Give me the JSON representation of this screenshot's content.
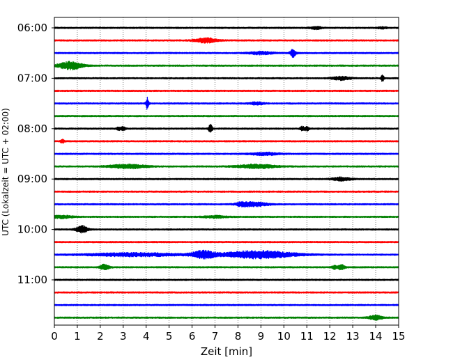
{
  "chart_data": {
    "type": "line",
    "title": "",
    "xlabel": "Zeit  [min]",
    "ylabel": "UTC (Lokalzeit = UTC + 02:00)",
    "xlim": [
      0,
      15
    ],
    "x_ticks": [
      0,
      1,
      2,
      3,
      4,
      5,
      6,
      7,
      8,
      9,
      10,
      11,
      12,
      13,
      14,
      15
    ],
    "y_tick_labels": [
      "06:00",
      "07:00",
      "08:00",
      "09:00",
      "10:00",
      "11:00"
    ],
    "grid": "vertical dotted",
    "colors": [
      "#000000",
      "#ff0000",
      "#0000ff",
      "#008000"
    ],
    "trace_interval_min": 15,
    "traces": [
      {
        "start": "06:00",
        "color": "#000000",
        "events": [
          {
            "t": 11.4,
            "amp": 0.18,
            "w": 0.25
          },
          {
            "t": 14.3,
            "amp": 0.12,
            "w": 0.2
          }
        ]
      },
      {
        "start": "06:15",
        "color": "#ff0000",
        "events": [
          {
            "t": 6.6,
            "amp": 0.35,
            "w": 0.5
          }
        ]
      },
      {
        "start": "06:30",
        "color": "#0000ff",
        "events": [
          {
            "t": 10.4,
            "amp": 0.6,
            "w": 0.12
          },
          {
            "t": 9.0,
            "amp": 0.2,
            "w": 0.5
          }
        ]
      },
      {
        "start": "06:45",
        "color": "#008000",
        "events": [
          {
            "t": 0.7,
            "amp": 0.6,
            "w": 0.5
          }
        ]
      },
      {
        "start": "07:00",
        "color": "#000000",
        "events": [
          {
            "t": 12.5,
            "amp": 0.25,
            "w": 0.4
          },
          {
            "t": 14.3,
            "amp": 0.6,
            "w": 0.06
          }
        ]
      },
      {
        "start": "07:15",
        "color": "#ff0000",
        "events": []
      },
      {
        "start": "07:30",
        "color": "#0000ff",
        "events": [
          {
            "t": 4.05,
            "amp": 0.95,
            "w": 0.06
          },
          {
            "t": 8.8,
            "amp": 0.2,
            "w": 0.3
          }
        ]
      },
      {
        "start": "07:45",
        "color": "#008000",
        "events": []
      },
      {
        "start": "08:00",
        "color": "#000000",
        "events": [
          {
            "t": 2.8,
            "amp": 0.2,
            "w": 0.1
          },
          {
            "t": 3.0,
            "amp": 0.3,
            "w": 0.1
          },
          {
            "t": 6.8,
            "amp": 0.7,
            "w": 0.08
          },
          {
            "t": 10.8,
            "amp": 0.3,
            "w": 0.1
          },
          {
            "t": 11.0,
            "amp": 0.3,
            "w": 0.1
          }
        ]
      },
      {
        "start": "08:15",
        "color": "#ff0000",
        "events": [
          {
            "t": 0.35,
            "amp": 0.3,
            "w": 0.08
          }
        ]
      },
      {
        "start": "08:30",
        "color": "#0000ff",
        "events": [
          {
            "t": 9.2,
            "amp": 0.2,
            "w": 0.6
          }
        ]
      },
      {
        "start": "08:45",
        "color": "#008000",
        "events": [
          {
            "t": 3.2,
            "amp": 0.3,
            "w": 0.8
          },
          {
            "t": 8.8,
            "amp": 0.3,
            "w": 0.8
          }
        ]
      },
      {
        "start": "09:00",
        "color": "#000000",
        "events": [
          {
            "t": 12.5,
            "amp": 0.25,
            "w": 0.4
          }
        ]
      },
      {
        "start": "09:15",
        "color": "#ff0000",
        "events": []
      },
      {
        "start": "09:30",
        "color": "#0000ff",
        "events": [
          {
            "t": 8.2,
            "amp": 0.3,
            "w": 0.3
          },
          {
            "t": 8.8,
            "amp": 0.3,
            "w": 0.5
          }
        ]
      },
      {
        "start": "09:45",
        "color": "#008000",
        "events": [
          {
            "t": 0.3,
            "amp": 0.2,
            "w": 0.5
          },
          {
            "t": 7.0,
            "amp": 0.15,
            "w": 0.5
          }
        ]
      },
      {
        "start": "10:00",
        "color": "#000000",
        "events": [
          {
            "t": 1.2,
            "amp": 0.55,
            "w": 0.25
          }
        ]
      },
      {
        "start": "10:15",
        "color": "#ff0000",
        "events": []
      },
      {
        "start": "10:30",
        "color": "#0000ff",
        "events": [
          {
            "t": 3.5,
            "amp": 0.25,
            "w": 2.0
          },
          {
            "t": 6.5,
            "amp": 0.55,
            "w": 0.5
          },
          {
            "t": 8.9,
            "amp": 0.6,
            "w": 1.5
          }
        ]
      },
      {
        "start": "10:45",
        "color": "#008000",
        "events": [
          {
            "t": 2.2,
            "amp": 0.45,
            "w": 0.2
          },
          {
            "t": 12.2,
            "amp": 0.3,
            "w": 0.1
          },
          {
            "t": 12.5,
            "amp": 0.4,
            "w": 0.15
          }
        ]
      },
      {
        "start": "11:00",
        "color": "#000000",
        "events": []
      },
      {
        "start": "11:15",
        "color": "#ff0000",
        "events": []
      },
      {
        "start": "11:30",
        "color": "#0000ff",
        "events": []
      },
      {
        "start": "11:45",
        "color": "#008000",
        "events": [
          {
            "t": 14.0,
            "amp": 0.35,
            "w": 0.3
          }
        ]
      }
    ]
  }
}
